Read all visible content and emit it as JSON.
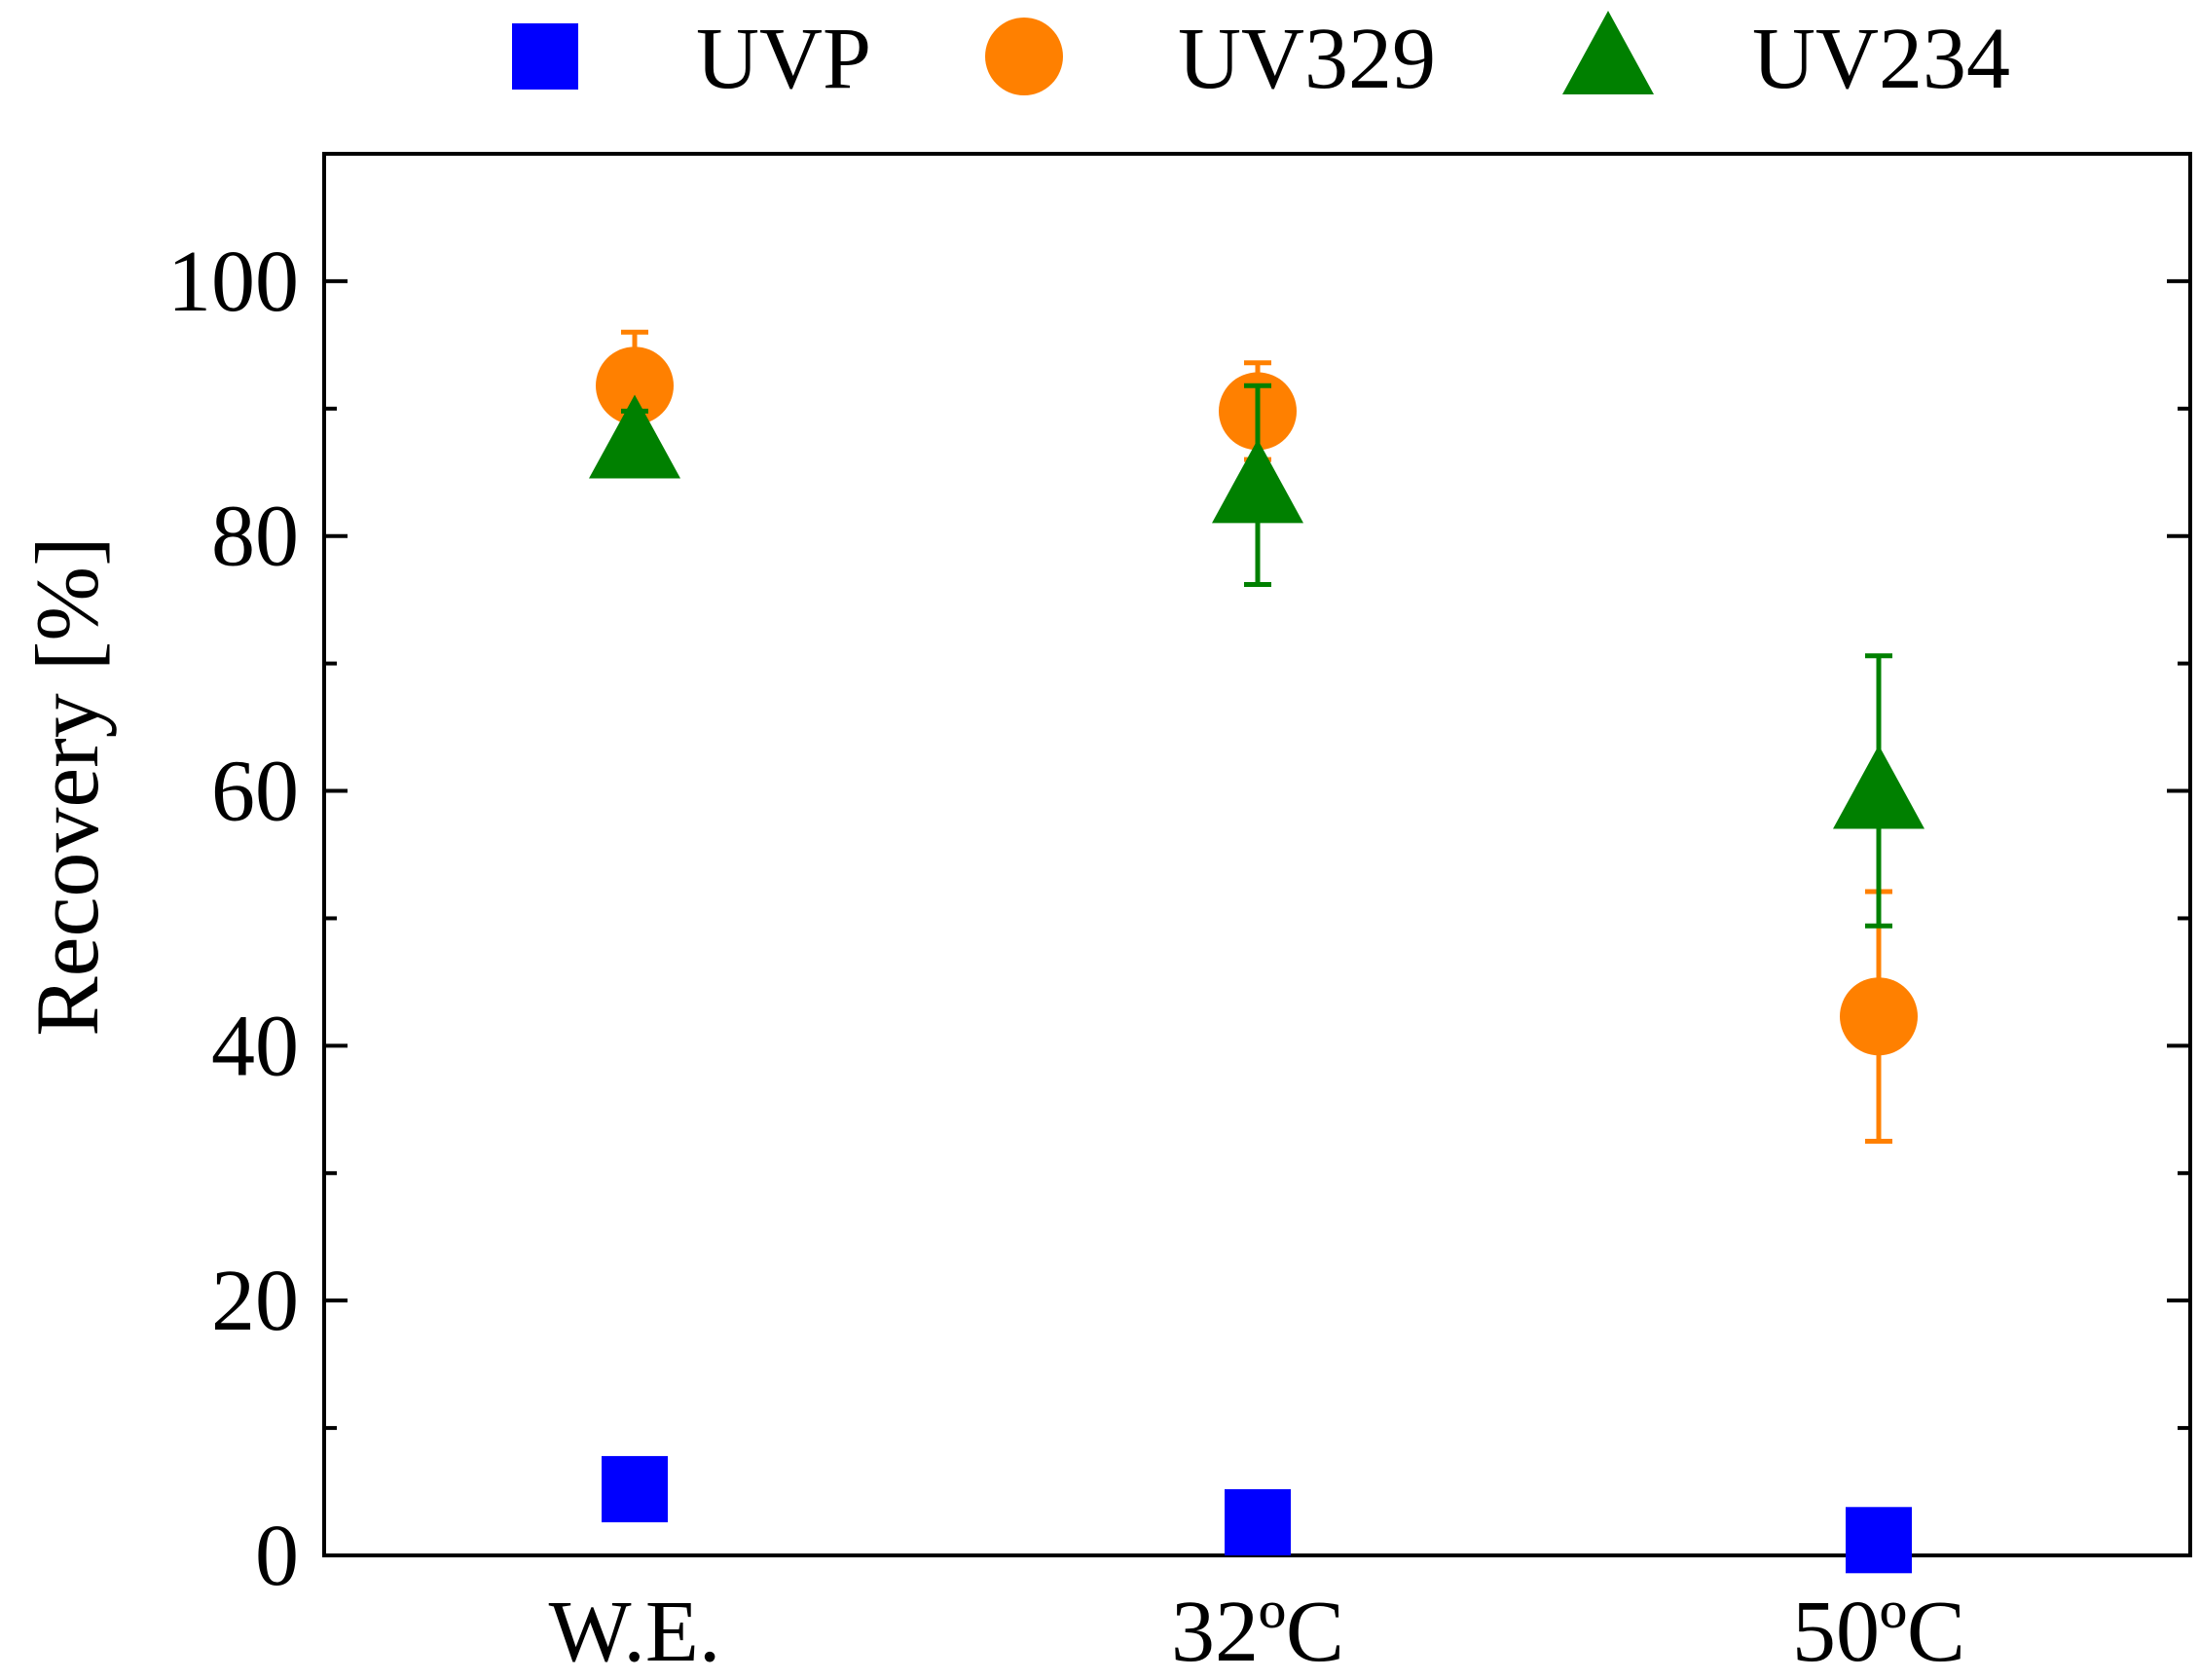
{
  "chart_data": {
    "type": "scatter",
    "title": "",
    "xlabel": "",
    "ylabel": "Recovery [%]",
    "categories": [
      "W.E.",
      "32ºC",
      "50ºC"
    ],
    "ylim": [
      0,
      110
    ],
    "yticks": [
      0,
      20,
      40,
      60,
      80,
      100
    ],
    "grid": false,
    "legend_position": "top",
    "series": [
      {
        "name": "UVP",
        "marker": "square",
        "color": "#0000ff",
        "values": [
          5.2,
          2.6,
          1.2
        ],
        "errors": [
          0,
          0,
          0
        ]
      },
      {
        "name": "UV329",
        "marker": "circle",
        "color": "#ff8000",
        "values": [
          91.8,
          89.8,
          42.3
        ],
        "errors": [
          4.2,
          3.8,
          9.8
        ]
      },
      {
        "name": "UV234",
        "marker": "triangle",
        "color": "#008000",
        "values": [
          87.5,
          84.0,
          60.0
        ],
        "errors": [
          2.3,
          7.8,
          10.6
        ]
      }
    ]
  }
}
